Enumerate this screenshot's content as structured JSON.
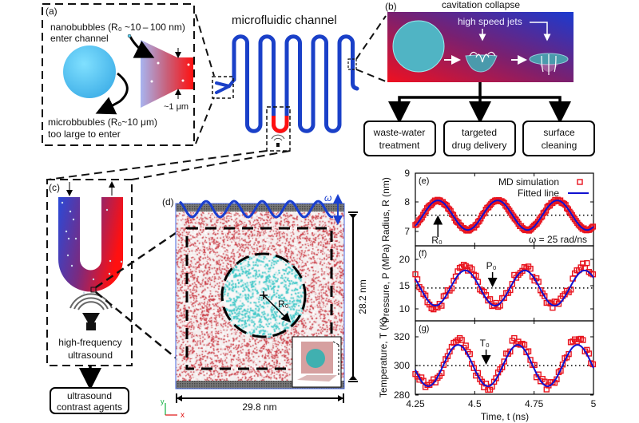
{
  "panel_a": {
    "label": "(a)",
    "nano_line1": "nanobubbles (R₀ ~10 – 100 nm)",
    "nano_line2": "enter channel",
    "micro_line1": "microbbubles (R₀~10 μm)",
    "micro_line2": "too large to enter",
    "width_label": "~1 μm"
  },
  "channel": {
    "title": "microfluidic channel"
  },
  "panel_b": {
    "label": "(b)",
    "title": "cavitation collapse",
    "jets_label": "high speed jets",
    "applications": [
      {
        "line1": "waste-water",
        "line2": "treatment"
      },
      {
        "line1": "targeted",
        "line2": "drug delivery"
      },
      {
        "line1": "surface",
        "line2": "cleaning"
      }
    ]
  },
  "panel_c": {
    "label": "(c)",
    "source_line1": "high-frequency",
    "source_line2": "ultrasound",
    "application_line1": "ultrasound",
    "application_line2": "contrast agents"
  },
  "panel_d": {
    "label": "(d)",
    "omega": "ω",
    "radius_label": "R₀",
    "height_label": "28.2 nm",
    "width_label": "29.8 nm",
    "axis_x": "x",
    "axis_y": "y"
  },
  "colors": {
    "water_red": "#c8323c",
    "bubble_cyan": "#40c8c8",
    "blue": "#1a3fd0",
    "red": "#ff0000",
    "marker": "#e8141e",
    "fit": "#1010d0"
  },
  "chart_data": [
    {
      "type": "line",
      "panel": "(e)",
      "ylabel": "Radius, R (nm)",
      "yticks": [
        "7",
        "8",
        "9"
      ],
      "ylim": [
        6.6,
        9
      ],
      "xlim": [
        4.25,
        5
      ],
      "reference": {
        "label": "R₀",
        "value": 7.55
      },
      "annotation": "ω = 25 rad/ns",
      "legend": [
        "MD simulation",
        "Fitted line"
      ],
      "legend_position": "top-right",
      "fit": {
        "mean": 7.55,
        "amplitude": 0.5,
        "omega": 25,
        "peak_time": 4.345
      },
      "md_noise": 0.03
    },
    {
      "type": "line",
      "panel": "(f)",
      "ylabel": "Pressure, P (MPa)",
      "yticks": [
        "10",
        "15",
        "20"
      ],
      "ylim": [
        7.5,
        23
      ],
      "xlim": [
        4.25,
        5
      ],
      "reference": {
        "label": "P₀",
        "value": 14.5
      },
      "fit": {
        "mean": 14.5,
        "amplitude": 3.8,
        "omega": 25,
        "peak_time": 4.46
      },
      "md_noise": 0.9
    },
    {
      "type": "line",
      "panel": "(g)",
      "ylabel": "Temperature, T (K)",
      "yticks": [
        "280",
        "300",
        "320"
      ],
      "ylim": [
        280,
        330
      ],
      "xlim": [
        4.25,
        5
      ],
      "reference": {
        "label": "T₀",
        "value": 300
      },
      "fit": {
        "mean": 300,
        "amplitude": 14,
        "omega": 25,
        "peak_time": 4.43
      },
      "md_noise": 3,
      "xticks": [
        "4.25",
        "4.5",
        "4.75",
        "5"
      ],
      "xlabel": "Time, t (ns)"
    }
  ]
}
